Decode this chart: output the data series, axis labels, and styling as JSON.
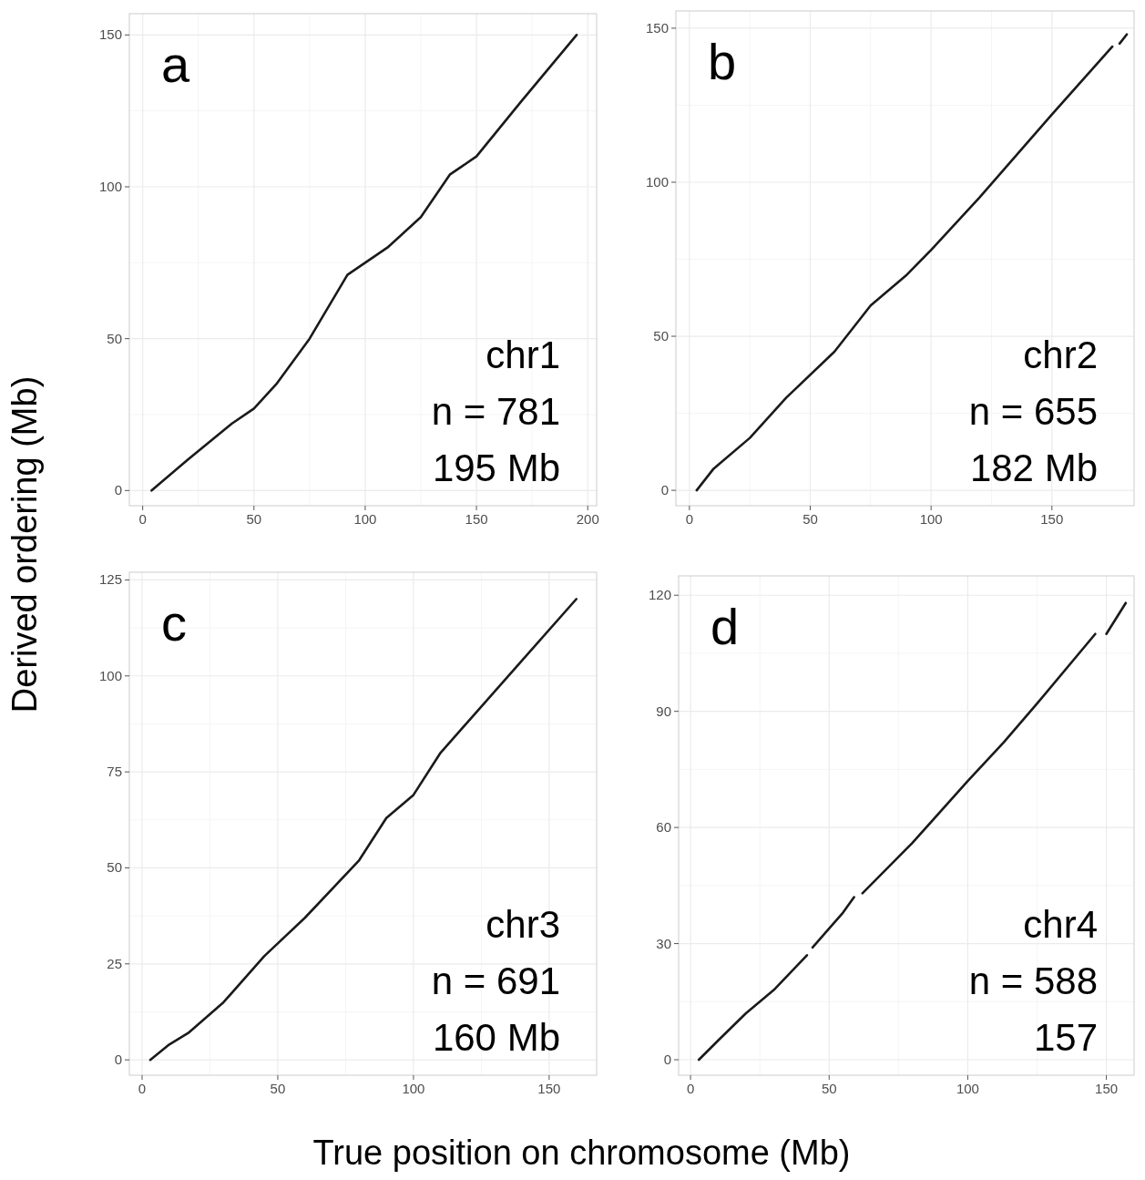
{
  "chart_data": [
    {
      "type": "line",
      "ylabel": "Derived ordering (Mb)",
      "annotations": [
        "a",
        "chr1",
        "n = 781",
        "195 Mb"
      ],
      "x": [
        4,
        20,
        40,
        50,
        60,
        75,
        92,
        110,
        125,
        138,
        150,
        170,
        195
      ],
      "series": [
        {
          "color": "#1a1a1a",
          "values": [
            0,
            10,
            22,
            27,
            35,
            50,
            71,
            80,
            90,
            104,
            110,
            128,
            150
          ]
        }
      ],
      "xlim": [
        -6,
        204
      ],
      "ylim": [
        -5,
        157
      ],
      "xticks": [
        0,
        50,
        100,
        150,
        200
      ],
      "yticks": [
        0,
        50,
        100,
        150
      ],
      "grid": true,
      "marker": "none"
    },
    {
      "type": "line",
      "annotations": [
        "b",
        "chr2",
        "n = 655",
        "182 Mb"
      ],
      "x": [
        3,
        10,
        25,
        40,
        60,
        75,
        90,
        100,
        120,
        150,
        175,
        176,
        178,
        181
      ],
      "series": [
        {
          "color": "#1a1a1a",
          "values": [
            0,
            7,
            17,
            30,
            45,
            60,
            70,
            78,
            95,
            122,
            144,
            null,
            145,
            148
          ]
        }
      ],
      "xlim": [
        -5.6,
        184
      ],
      "ylim": [
        -5,
        155.6
      ],
      "xticks": [
        0,
        50,
        100,
        150
      ],
      "yticks": [
        0,
        50,
        100,
        150
      ],
      "grid": true,
      "marker": "none"
    },
    {
      "type": "line",
      "xlabel": "True position on chromosome (Mb)",
      "annotations": [
        "c",
        "chr3",
        "n = 691",
        "160 Mb"
      ],
      "x": [
        3,
        10,
        17,
        30,
        45,
        60,
        80,
        90,
        100,
        110,
        120,
        140,
        160
      ],
      "series": [
        {
          "color": "#1a1a1a",
          "values": [
            0,
            4,
            7,
            15,
            27,
            37,
            52,
            63,
            69,
            80,
            88,
            104,
            120
          ]
        }
      ],
      "xlim": [
        -4.7,
        167.5
      ],
      "ylim": [
        -4,
        127
      ],
      "xticks": [
        0,
        50,
        100,
        150
      ],
      "yticks": [
        0,
        25,
        50,
        75,
        100,
        125
      ],
      "grid": true,
      "marker": "none"
    },
    {
      "type": "line",
      "annotations": [
        "d",
        "chr4",
        "n = 588",
        "157"
      ],
      "x": [
        3,
        10,
        20,
        30,
        42,
        43,
        44,
        55,
        59,
        60,
        62,
        80,
        100,
        113,
        125,
        146,
        148,
        150,
        157
      ],
      "series": [
        {
          "color": "#1a1a1a",
          "values": [
            0,
            5,
            12,
            18,
            27,
            null,
            29,
            38,
            42,
            null,
            43,
            56,
            72,
            82,
            92,
            110,
            null,
            110,
            118
          ]
        }
      ],
      "xlim": [
        -4.3,
        160
      ],
      "ylim": [
        -4,
        125
      ],
      "xticks": [
        0,
        50,
        100,
        150
      ],
      "yticks": [
        0,
        30,
        60,
        90,
        120
      ],
      "grid": true,
      "marker": "none"
    }
  ]
}
